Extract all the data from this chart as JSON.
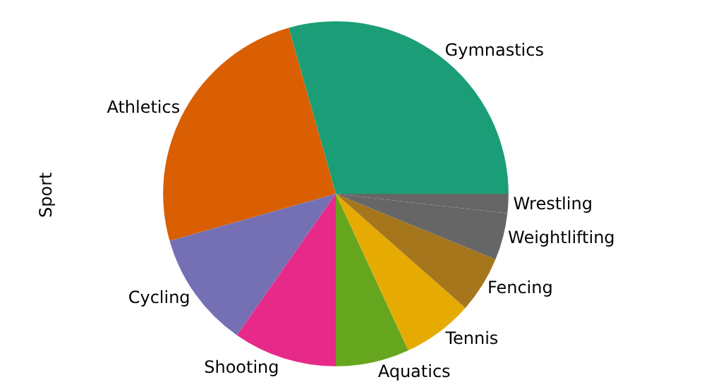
{
  "chart_data": {
    "type": "pie",
    "ylabel": "Sport",
    "categories": [
      "Gymnastics",
      "Athletics",
      "Cycling",
      "Shooting",
      "Aquatics",
      "Tennis",
      "Fencing",
      "Weightlifting",
      "Wrestling"
    ],
    "values": [
      29.4,
      25.0,
      10.9,
      9.7,
      6.9,
      6.6,
      5.3,
      4.4,
      1.8
    ],
    "colors": [
      "#1b9e77",
      "#d95f02",
      "#7570b3",
      "#e7298a",
      "#66a61e",
      "#e6ab02",
      "#a6761d",
      "#666666",
      "#666666"
    ],
    "legend": false
  }
}
